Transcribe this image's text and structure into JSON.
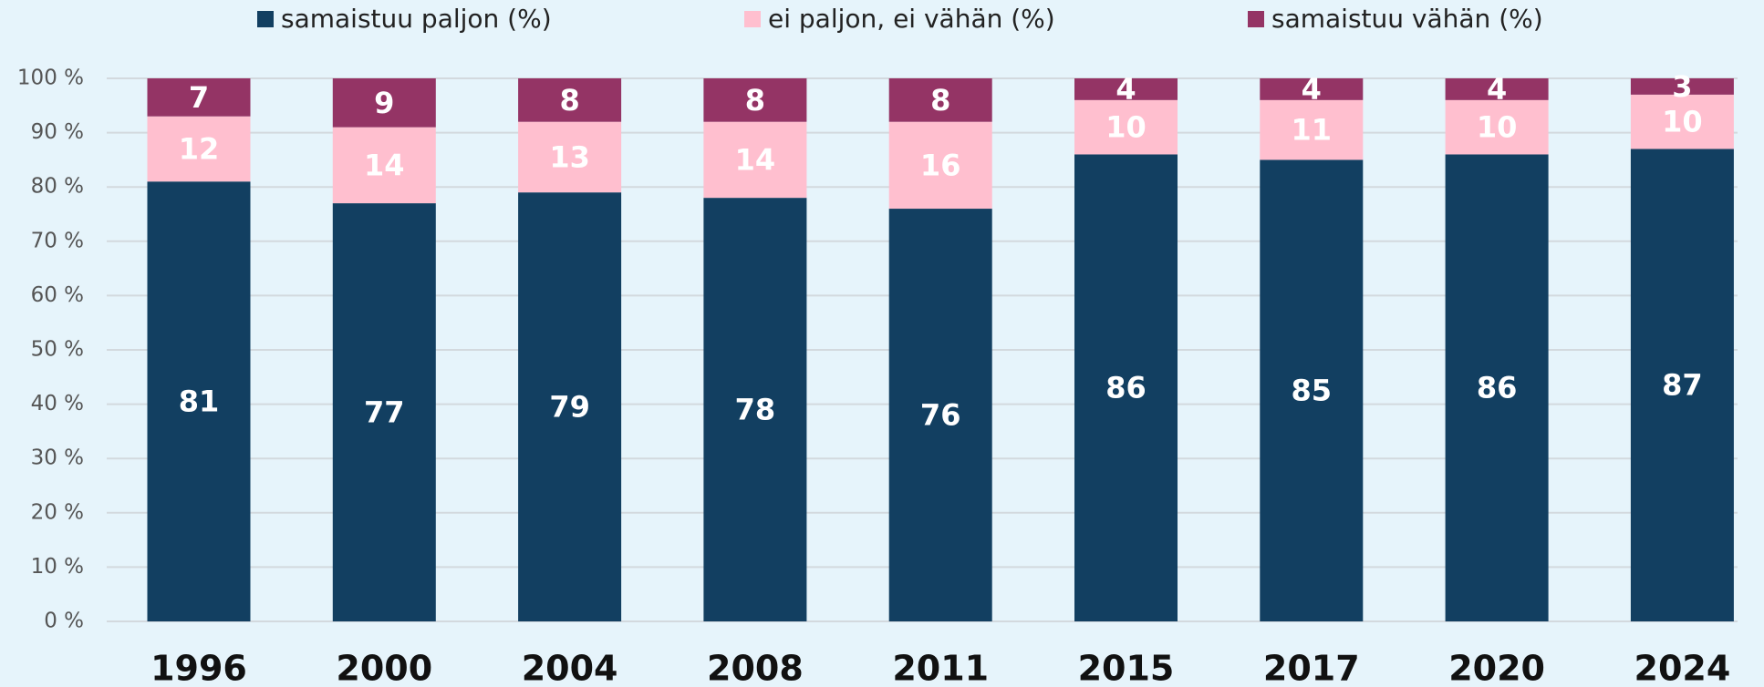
{
  "chart_data": {
    "type": "stacked_bar",
    "categories": [
      "1996",
      "2000",
      "2004",
      "2008",
      "2011",
      "2015",
      "2017",
      "2020",
      "2024"
    ],
    "series": [
      {
        "name": "samaistuu paljon (%)",
        "color": "#123f61",
        "values": [
          81,
          77,
          79,
          78,
          76,
          86,
          85,
          86,
          87
        ]
      },
      {
        "name": "ei paljon, ei vähän (%)",
        "color": "#ffbfcf",
        "values": [
          12,
          14,
          13,
          14,
          16,
          10,
          11,
          10,
          10
        ]
      },
      {
        "name": "samaistuu vähän (%)",
        "color": "#943465",
        "values": [
          7,
          9,
          8,
          8,
          8,
          4,
          4,
          4,
          3
        ]
      }
    ],
    "ylim": [
      0,
      100
    ],
    "yticks": [
      {
        "value": 0,
        "label": "0 %"
      },
      {
        "value": 10,
        "label": "10 %"
      },
      {
        "value": 20,
        "label": "20 %"
      },
      {
        "value": 30,
        "label": "30 %"
      },
      {
        "value": 40,
        "label": "40 %"
      },
      {
        "value": 50,
        "label": "50 %"
      },
      {
        "value": 60,
        "label": "60 %"
      },
      {
        "value": 70,
        "label": "70 %"
      },
      {
        "value": 80,
        "label": "80 %"
      },
      {
        "value": 90,
        "label": "90 %"
      },
      {
        "value": 100,
        "label": "100 %"
      }
    ],
    "grid": true,
    "legend": "top"
  }
}
